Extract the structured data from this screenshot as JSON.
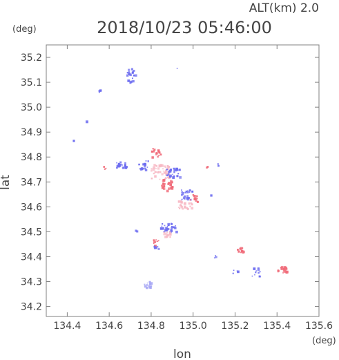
{
  "header": {
    "alt_label": "ALT(km) 2.0",
    "datetime": "2018/10/23 05:46:00",
    "y_unit": "(deg)",
    "x_unit": "(deg)"
  },
  "colors": {
    "frame": "#808080",
    "text": "#444444",
    "blue": "#6c6cf0",
    "red": "#f06a78",
    "pink": "#f7b8c4",
    "lightblue": "#a8a8f5"
  },
  "chart_data": {
    "type": "scatter",
    "xlabel": "lon",
    "ylabel": "lat",
    "xlim": [
      134.3,
      135.6
    ],
    "ylim": [
      34.16,
      35.25
    ],
    "x_ticks": [
      "134.4",
      "134.6",
      "134.8",
      "135.0",
      "135.2",
      "135.4",
      "135.6"
    ],
    "y_ticks": [
      "34.2",
      "34.3",
      "34.4",
      "34.5",
      "34.6",
      "34.7",
      "34.8",
      "34.9",
      "35.0",
      "35.1",
      "35.2"
    ],
    "grid": false,
    "clusters": [
      {
        "lon": 134.7,
        "lat": 35.13,
        "w": 0.04,
        "h": 0.06,
        "color": "blue",
        "density": 18
      },
      {
        "lon": 134.92,
        "lat": 35.16,
        "w": 0.005,
        "h": 0.005,
        "color": "blue",
        "density": 1
      },
      {
        "lon": 134.55,
        "lat": 35.07,
        "w": 0.015,
        "h": 0.01,
        "color": "blue",
        "density": 4
      },
      {
        "lon": 134.49,
        "lat": 34.95,
        "w": 0.005,
        "h": 0.005,
        "color": "blue",
        "density": 1
      },
      {
        "lon": 134.43,
        "lat": 34.87,
        "w": 0.005,
        "h": 0.005,
        "color": "blue",
        "density": 1
      },
      {
        "lon": 134.58,
        "lat": 34.76,
        "w": 0.015,
        "h": 0.01,
        "color": "red",
        "density": 3
      },
      {
        "lon": 134.66,
        "lat": 34.77,
        "w": 0.06,
        "h": 0.02,
        "color": "blue",
        "density": 20
      },
      {
        "lon": 134.76,
        "lat": 34.77,
        "w": 0.04,
        "h": 0.03,
        "color": "blue",
        "density": 16
      },
      {
        "lon": 134.82,
        "lat": 34.82,
        "w": 0.04,
        "h": 0.03,
        "color": "red",
        "density": 16
      },
      {
        "lon": 134.84,
        "lat": 34.74,
        "w": 0.08,
        "h": 0.06,
        "color": "pink",
        "density": 45
      },
      {
        "lon": 134.9,
        "lat": 34.74,
        "w": 0.06,
        "h": 0.03,
        "color": "blue",
        "density": 25
      },
      {
        "lon": 134.87,
        "lat": 34.69,
        "w": 0.05,
        "h": 0.04,
        "color": "red",
        "density": 25
      },
      {
        "lon": 134.97,
        "lat": 34.65,
        "w": 0.05,
        "h": 0.04,
        "color": "blue",
        "density": 25
      },
      {
        "lon": 134.96,
        "lat": 34.61,
        "w": 0.06,
        "h": 0.03,
        "color": "pink",
        "density": 25
      },
      {
        "lon": 135.0,
        "lat": 34.64,
        "w": 0.03,
        "h": 0.03,
        "color": "red",
        "density": 10
      },
      {
        "lon": 135.06,
        "lat": 34.76,
        "w": 0.005,
        "h": 0.005,
        "color": "red",
        "density": 2
      },
      {
        "lon": 135.12,
        "lat": 34.77,
        "w": 0.005,
        "h": 0.005,
        "color": "blue",
        "density": 2
      },
      {
        "lon": 135.08,
        "lat": 34.65,
        "w": 0.005,
        "h": 0.005,
        "color": "blue",
        "density": 1
      },
      {
        "lon": 134.73,
        "lat": 34.51,
        "w": 0.01,
        "h": 0.005,
        "color": "blue",
        "density": 2
      },
      {
        "lon": 134.88,
        "lat": 34.52,
        "w": 0.07,
        "h": 0.03,
        "color": "blue",
        "density": 30
      },
      {
        "lon": 134.87,
        "lat": 34.49,
        "w": 0.03,
        "h": 0.02,
        "color": "pink",
        "density": 10
      },
      {
        "lon": 134.82,
        "lat": 34.46,
        "w": 0.02,
        "h": 0.02,
        "color": "red",
        "density": 8
      },
      {
        "lon": 134.82,
        "lat": 34.44,
        "w": 0.02,
        "h": 0.01,
        "color": "blue",
        "density": 5
      },
      {
        "lon": 135.1,
        "lat": 34.4,
        "w": 0.01,
        "h": 0.01,
        "color": "blue",
        "density": 3
      },
      {
        "lon": 135.22,
        "lat": 34.43,
        "w": 0.03,
        "h": 0.015,
        "color": "red",
        "density": 10
      },
      {
        "lon": 135.2,
        "lat": 34.34,
        "w": 0.02,
        "h": 0.01,
        "color": "blue",
        "density": 5
      },
      {
        "lon": 135.3,
        "lat": 34.34,
        "w": 0.04,
        "h": 0.03,
        "color": "blue",
        "density": 12
      },
      {
        "lon": 135.42,
        "lat": 34.35,
        "w": 0.04,
        "h": 0.02,
        "color": "red",
        "density": 20
      },
      {
        "lon": 134.78,
        "lat": 34.29,
        "w": 0.03,
        "h": 0.02,
        "color": "lightblue",
        "density": 14
      }
    ]
  }
}
